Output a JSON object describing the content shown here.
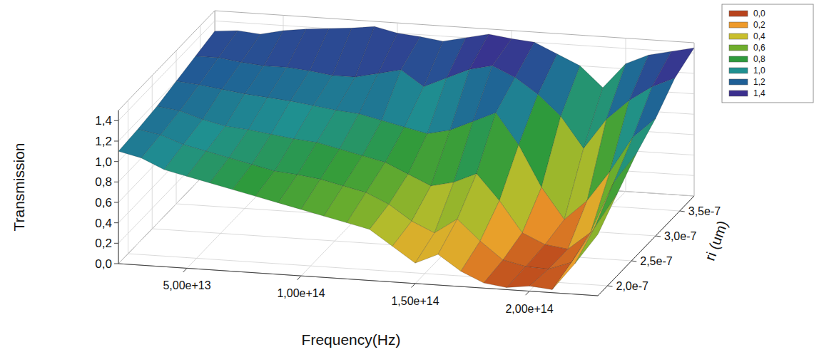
{
  "chart_data": {
    "type": "surface",
    "x_label": "Frequency(Hz)",
    "y_label": "ri (um)",
    "z_label": "Transmission",
    "x": [
      20000000000000.0,
      30000000000000.0,
      40000000000000.0,
      50000000000000.0,
      60000000000000.0,
      70000000000000.0,
      80000000000000.0,
      90000000000000.0,
      100000000000000.0,
      110000000000000.0,
      120000000000000.0,
      130000000000000.0,
      140000000000000.0,
      150000000000000.0,
      160000000000000.0,
      170000000000000.0,
      180000000000000.0,
      190000000000000.0,
      200000000000000.0,
      210000000000000.0,
      220000000000000.0,
      230000000000000.0
    ],
    "y": [
      1.8e-07,
      2.2e-07,
      2.6e-07,
      3e-07,
      3.4e-07,
      3.8e-07
    ],
    "z": [
      [
        1.1,
        1.05,
        0.95,
        0.9,
        0.85,
        0.8,
        0.75,
        0.7,
        0.65,
        0.6,
        0.55,
        0.5,
        0.35,
        0.2,
        0.3,
        0.15,
        0.05,
        0.02,
        0.05,
        0.03,
        0.3,
        0.6
      ],
      [
        1.12,
        1.08,
        1.0,
        0.95,
        0.9,
        0.85,
        0.8,
        0.78,
        0.75,
        0.7,
        0.65,
        0.55,
        0.4,
        0.3,
        0.45,
        0.25,
        0.08,
        0.03,
        0.02,
        0.1,
        0.45,
        0.8
      ],
      [
        1.15,
        1.12,
        1.05,
        1.0,
        0.98,
        0.95,
        0.92,
        0.9,
        0.85,
        0.8,
        0.75,
        0.65,
        0.55,
        0.6,
        0.7,
        0.45,
        0.15,
        0.05,
        0.02,
        0.2,
        0.7,
        1.0
      ],
      [
        1.2,
        1.18,
        1.15,
        1.12,
        1.1,
        1.08,
        1.05,
        1.02,
        1.0,
        0.95,
        0.9,
        0.85,
        0.9,
        1.0,
        1.1,
        0.8,
        0.4,
        0.1,
        0.3,
        0.6,
        0.95,
        1.15
      ],
      [
        1.25,
        1.25,
        1.22,
        1.2,
        1.2,
        1.18,
        1.15,
        1.15,
        1.2,
        1.25,
        1.1,
        1.2,
        1.3,
        1.35,
        1.25,
        1.1,
        0.9,
        0.6,
        0.9,
        1.1,
        1.25,
        1.35
      ],
      [
        1.3,
        1.32,
        1.3,
        1.35,
        1.38,
        1.4,
        1.42,
        1.45,
        1.4,
        1.38,
        1.35,
        1.4,
        1.45,
        1.42,
        1.4,
        1.3,
        1.2,
        1.0,
        1.25,
        1.35,
        1.4,
        1.45
      ]
    ],
    "xlim": [
      20000000000000.0,
      230000000000000.0
    ],
    "xticks": [
      {
        "value": 50000000000000.0,
        "label": "5,00e+13"
      },
      {
        "value": 100000000000000.0,
        "label": "1,00e+14"
      },
      {
        "value": 150000000000000.0,
        "label": "1,50e+14"
      },
      {
        "value": 200000000000000.0,
        "label": "2,00e+14"
      }
    ],
    "ylim": [
      1.8e-07,
      3.8e-07
    ],
    "yticks": [
      {
        "value": 2e-07,
        "label": "2,0e-7"
      },
      {
        "value": 2.5e-07,
        "label": "2,5e-7"
      },
      {
        "value": 3e-07,
        "label": "3,0e-7"
      },
      {
        "value": 3.5e-07,
        "label": "3,5e-7"
      }
    ],
    "zlim": [
      0,
      1.5
    ],
    "zticks": [
      {
        "value": 0,
        "label": "0,0"
      },
      {
        "value": 0.2,
        "label": "0,2"
      },
      {
        "value": 0.4,
        "label": "0,4"
      },
      {
        "value": 0.6,
        "label": "0,6"
      },
      {
        "value": 0.8,
        "label": "0,8"
      },
      {
        "value": 1.0,
        "label": "1,0"
      },
      {
        "value": 1.2,
        "label": "1,2"
      },
      {
        "value": 1.4,
        "label": "1,4"
      }
    ],
    "colorbar": {
      "ticks": [
        {
          "value": 0,
          "label": "0,0"
        },
        {
          "value": 0.2,
          "label": "0,2"
        },
        {
          "value": 0.4,
          "label": "0,4"
        },
        {
          "value": 0.6,
          "label": "0,6"
        },
        {
          "value": 0.8,
          "label": "0,8"
        },
        {
          "value": 1.0,
          "label": "1,0"
        },
        {
          "value": 1.2,
          "label": "1,2"
        },
        {
          "value": 1.4,
          "label": "1,4"
        }
      ],
      "colors": [
        "#b8431c",
        "#ee9a2a",
        "#c9bf2c",
        "#6fae2c",
        "#2e9a3c",
        "#1f9090",
        "#1f5f96",
        "#3b2f8e"
      ]
    },
    "grid": true,
    "legend": "top-right"
  }
}
